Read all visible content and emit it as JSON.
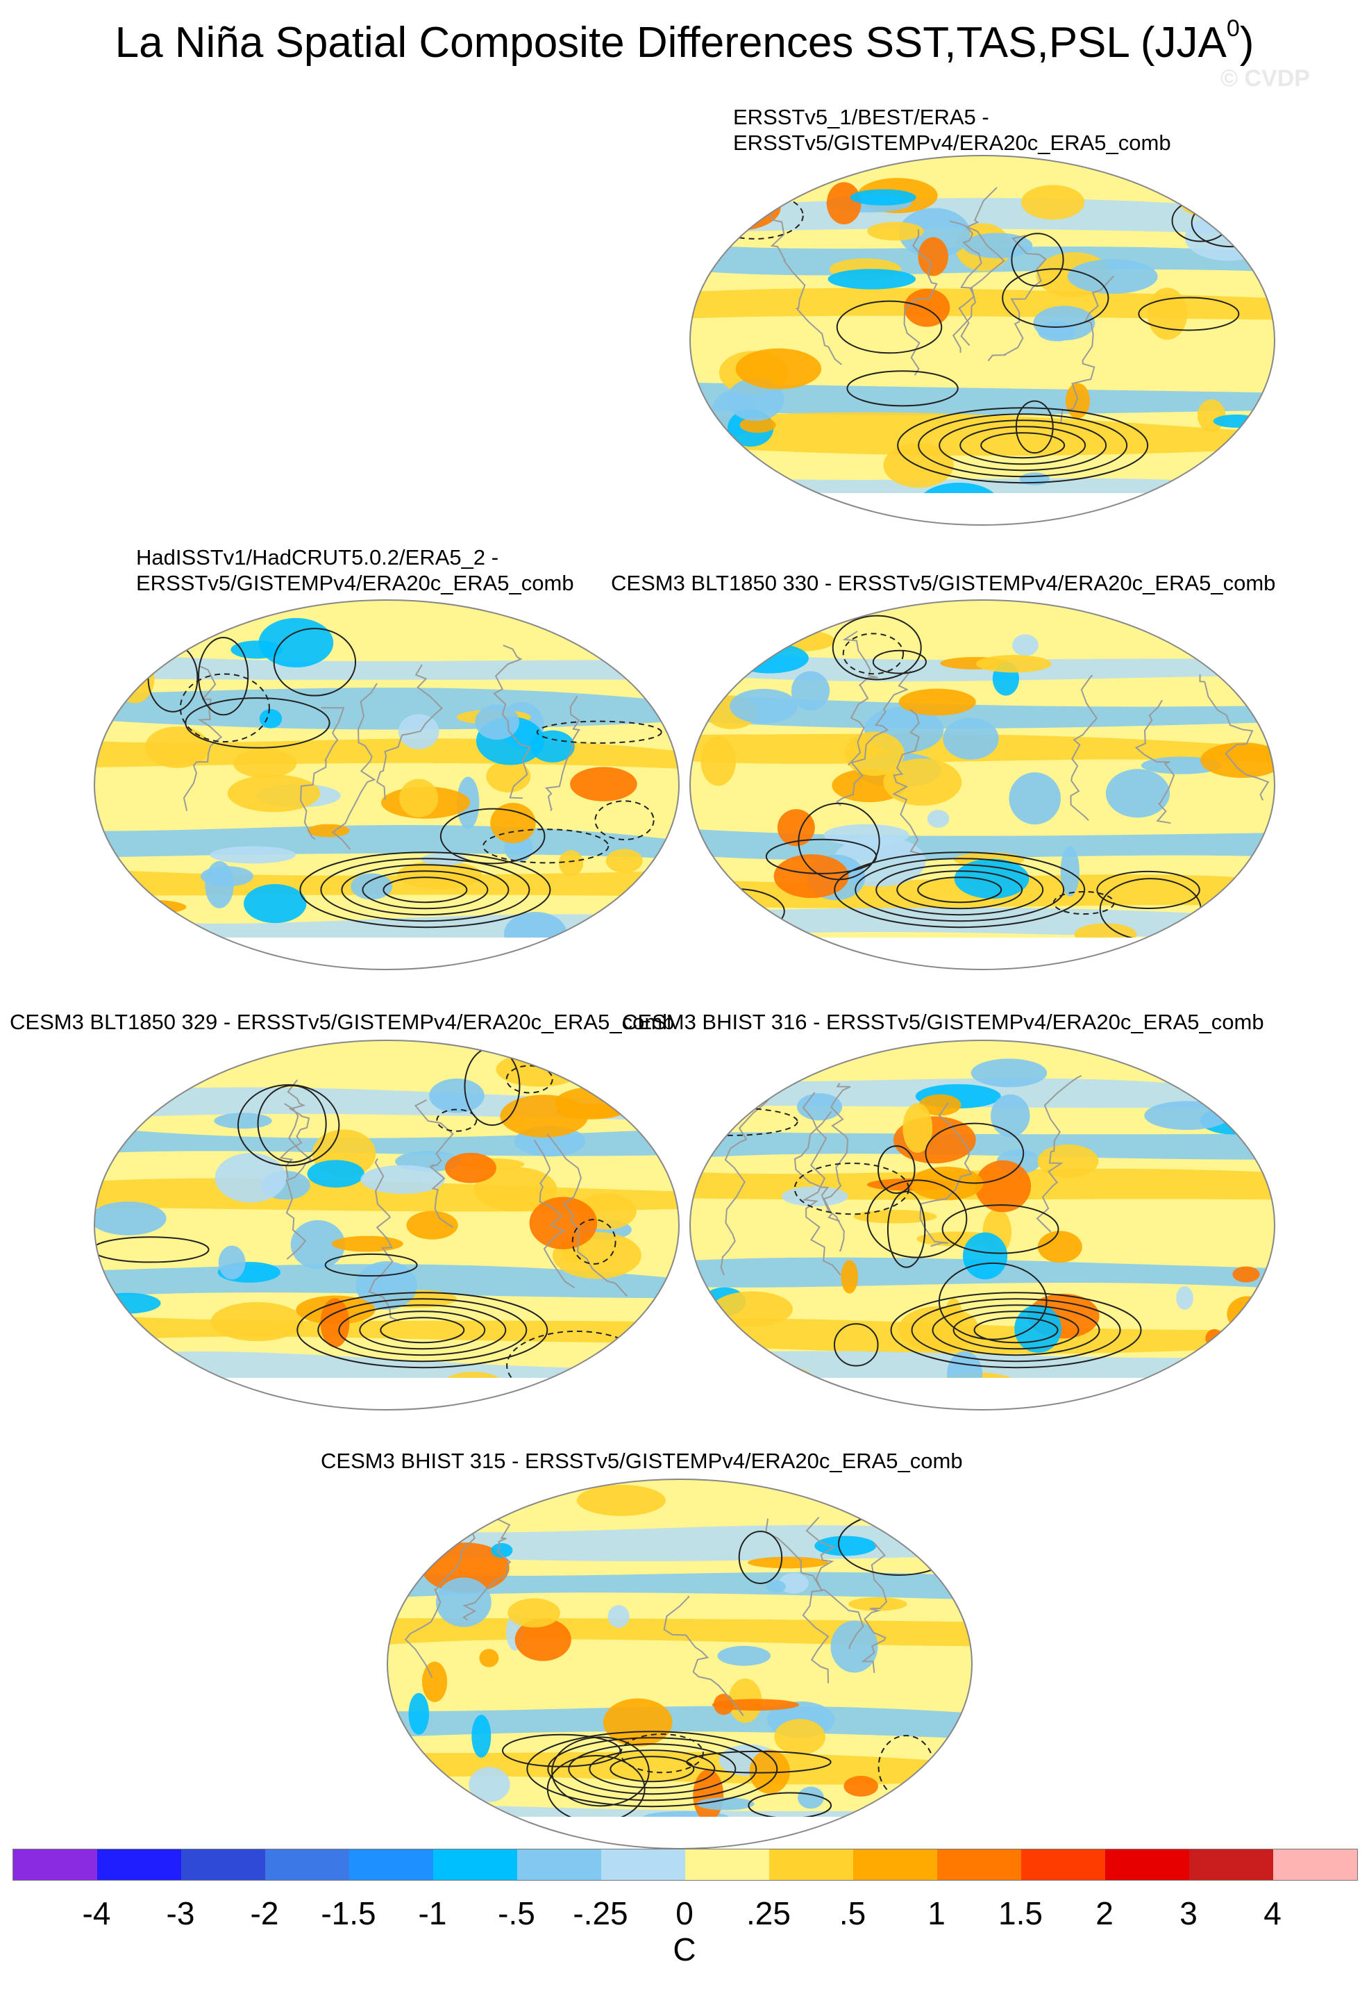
{
  "title": "La Niña Spatial Composite Differences SST,TAS,PSL (JJA",
  "title_sup": "0",
  "title_close": ")",
  "watermark": "© CVDP",
  "panels": [
    {
      "id": "p1",
      "title_lines": [
        "ERSSTv5_1/BEST/ERA5 -",
        "ERSSTv5/GISTEMPv4/ERA20c_ERA5_comb"
      ],
      "seed": 11
    },
    {
      "id": "p2",
      "title_lines": [
        "HadISSTv1/HadCRUT5.0.2/ERA5_2 -",
        "ERSSTv5/GISTEMPv4/ERA20c_ERA5_comb"
      ],
      "seed": 23
    },
    {
      "id": "p3",
      "title_lines": [
        "CESM3 BLT1850 330 - ERSSTv5/GISTEMPv4/ERA20c_ERA5_comb"
      ],
      "seed": 37
    },
    {
      "id": "p4",
      "title_lines": [
        "CESM3 BLT1850 329 - ERSSTv5/GISTEMPv4/ERA20c_ERA5_comb"
      ],
      "seed": 41
    },
    {
      "id": "p5",
      "title_lines": [
        "CESM3 BHIST 316 - ERSSTv5/GISTEMPv4/ERA20c_ERA5_comb"
      ],
      "seed": 53
    },
    {
      "id": "p6",
      "title_lines": [
        "CESM3 BHIST 315 - ERSSTv5/GISTEMPv4/ERA20c_ERA5_comb"
      ],
      "seed": 67
    }
  ],
  "colorbar": {
    "colors": [
      "#8a2be2",
      "#1e1eff",
      "#2e4ad6",
      "#3c78e6",
      "#1e90ff",
      "#00bfff",
      "#82c8f0",
      "#b4dcf5",
      "#fff591",
      "#ffd22d",
      "#ffaa00",
      "#ff7800",
      "#ff3c00",
      "#e60000",
      "#c81e1e",
      "#ffb4b4"
    ],
    "labels": [
      "-4",
      "-3",
      "-2",
      "-1.5",
      "-1",
      "-.5",
      "-.25",
      "0",
      ".25",
      ".5",
      "1",
      "1.5",
      "2",
      "3",
      "4"
    ],
    "unit": "C"
  }
}
